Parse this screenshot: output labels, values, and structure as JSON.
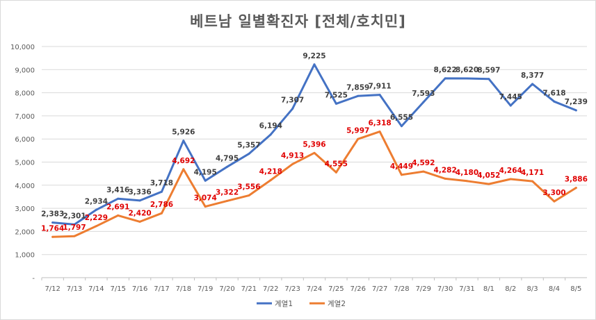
{
  "chart_data": {
    "type": "line",
    "title": "베트남  일별확진자 [전체/호치민]",
    "xlabel": "",
    "ylabel": "",
    "ylim": [
      0,
      10000
    ],
    "ytick_step": 1000,
    "yticks": [
      "-",
      "1,000",
      "2,000",
      "3,000",
      "4,000",
      "5,000",
      "6,000",
      "7,000",
      "8,000",
      "9,000",
      "10,000"
    ],
    "categories": [
      "7/12",
      "7/13",
      "7/14",
      "7/15",
      "7/16",
      "7/17",
      "7/18",
      "7/19",
      "7/20",
      "7/21",
      "7/22",
      "7/23",
      "7/24",
      "7/25",
      "7/26",
      "7/27",
      "7/28",
      "7/29",
      "7/30",
      "7/31",
      "8/1",
      "8/2",
      "8/3",
      "8/4",
      "8/5"
    ],
    "series": [
      {
        "name": "계열1",
        "color": "#4472c4",
        "values": [
          2383,
          2301,
          2934,
          3416,
          3336,
          3718,
          5926,
          4195,
          4795,
          5357,
          6194,
          7307,
          9225,
          7525,
          7859,
          7911,
          6555,
          7593,
          8622,
          8620,
          8597,
          7445,
          8377,
          7618,
          7239
        ],
        "labels": [
          "2,383",
          "2,301",
          "2,934",
          "3,416",
          "3,336",
          "3,718",
          "5,926",
          "4,195",
          "4,795",
          "5,357",
          "6,194",
          "7,307",
          "9,225",
          "7,525",
          "7,859",
          "7,911",
          "6,555",
          "7,593",
          "8,622",
          "8,620",
          "8,597",
          "7,445",
          "8,377",
          "7,618",
          "7,239"
        ]
      },
      {
        "name": "계열2",
        "color": "#ed7d31",
        "label_color": "#e00000",
        "values": [
          1764,
          1797,
          2229,
          2691,
          2420,
          2786,
          4692,
          3074,
          3322,
          3556,
          4218,
          4913,
          5396,
          4555,
          5997,
          6318,
          4449,
          4592,
          4282,
          4180,
          4052,
          4264,
          4171,
          3300,
          3886
        ],
        "labels": [
          "1,764",
          "1,797",
          "2,229",
          "2,691",
          "2,420",
          "2,786",
          "4,692",
          "3,074",
          "3,322",
          "3,556",
          "4,218",
          "4,913",
          "5,396",
          "4,555",
          "5,997",
          "6,318",
          "4,449",
          "4,592",
          "4,282",
          "4,180",
          "4,052",
          "4,264",
          "4,171",
          "3,300",
          "3,886"
        ]
      }
    ],
    "legend_position": "bottom",
    "grid": true
  }
}
